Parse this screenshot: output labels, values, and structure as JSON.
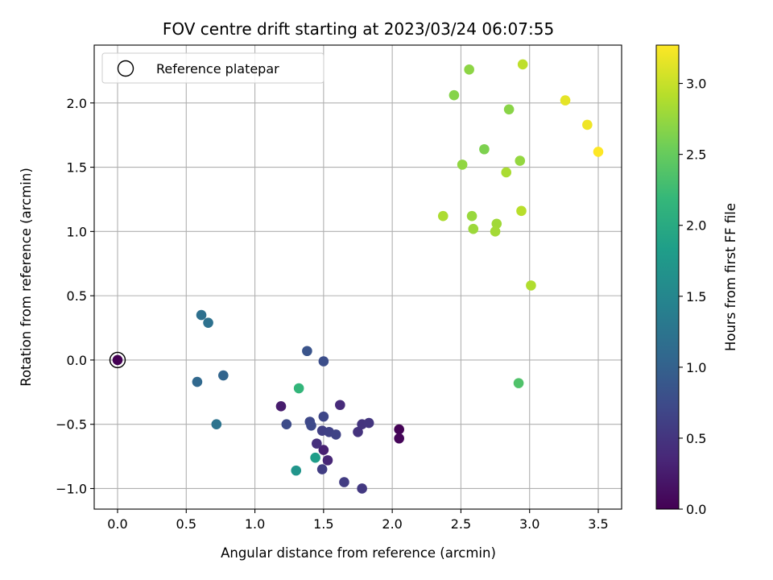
{
  "chart_data": {
    "type": "scatter",
    "title": "FOV centre drift starting at 2023/03/24 06:07:55",
    "xlabel": "Angular distance from reference (arcmin)",
    "ylabel": "Rotation from reference (arcmin)",
    "xlim": [
      -0.17,
      3.67
    ],
    "ylim": [
      -1.16,
      2.45
    ],
    "x_ticks": [
      0.0,
      0.5,
      1.0,
      1.5,
      2.0,
      2.5,
      3.0,
      3.5
    ],
    "x_tick_labels": [
      "0.0",
      "0.5",
      "1.0",
      "1.5",
      "2.0",
      "2.5",
      "3.0",
      "3.5"
    ],
    "y_ticks": [
      -1.0,
      -0.5,
      0.0,
      0.5,
      1.0,
      1.5,
      2.0
    ],
    "y_tick_labels": [
      "−1.0",
      "−0.5",
      "0.0",
      "0.5",
      "1.0",
      "1.5",
      "2.0"
    ],
    "grid": true,
    "legend": {
      "placement": "top-left",
      "entries": [
        "Reference platepar"
      ]
    },
    "colorbar": {
      "label": "Hours from first FF file",
      "colormap": "viridis",
      "range": [
        0.0,
        3.27
      ],
      "ticks": [
        0.0,
        0.5,
        1.0,
        1.5,
        2.0,
        2.5,
        3.0
      ],
      "tick_labels": [
        "0.0",
        "0.5",
        "1.0",
        "1.5",
        "2.0",
        "2.5",
        "3.0"
      ]
    },
    "reference_point": {
      "name": "Reference platepar",
      "x": 0.0,
      "y": 0.0
    },
    "points": [
      {
        "x": 0.0,
        "y": 0.0,
        "c": 0.0
      },
      {
        "x": 2.05,
        "y": -0.54,
        "c": 0.02
      },
      {
        "x": 2.05,
        "y": -0.61,
        "c": 0.05
      },
      {
        "x": 1.19,
        "y": -0.36,
        "c": 0.25
      },
      {
        "x": 1.5,
        "y": -0.7,
        "c": 0.3
      },
      {
        "x": 1.53,
        "y": -0.78,
        "c": 0.35
      },
      {
        "x": 1.62,
        "y": -0.35,
        "c": 0.4
      },
      {
        "x": 1.45,
        "y": -0.65,
        "c": 0.45
      },
      {
        "x": 1.75,
        "y": -0.56,
        "c": 0.48
      },
      {
        "x": 1.78,
        "y": -0.5,
        "c": 0.5
      },
      {
        "x": 1.83,
        "y": -0.49,
        "c": 0.52
      },
      {
        "x": 1.78,
        "y": -1.0,
        "c": 0.55
      },
      {
        "x": 1.65,
        "y": -0.95,
        "c": 0.58
      },
      {
        "x": 1.49,
        "y": -0.85,
        "c": 0.6
      },
      {
        "x": 1.49,
        "y": -0.55,
        "c": 0.62
      },
      {
        "x": 1.54,
        "y": -0.56,
        "c": 0.64
      },
      {
        "x": 1.59,
        "y": -0.58,
        "c": 0.66
      },
      {
        "x": 1.5,
        "y": -0.44,
        "c": 0.7
      },
      {
        "x": 1.4,
        "y": -0.48,
        "c": 0.72
      },
      {
        "x": 1.41,
        "y": -0.51,
        "c": 0.74
      },
      {
        "x": 1.23,
        "y": -0.5,
        "c": 0.76
      },
      {
        "x": 1.5,
        "y": -0.01,
        "c": 0.78
      },
      {
        "x": 1.38,
        "y": 0.07,
        "c": 0.85
      },
      {
        "x": 0.77,
        "y": -0.12,
        "c": 1.05
      },
      {
        "x": 0.58,
        "y": -0.17,
        "c": 1.1
      },
      {
        "x": 0.61,
        "y": 0.35,
        "c": 1.2
      },
      {
        "x": 0.66,
        "y": 0.29,
        "c": 1.22
      },
      {
        "x": 0.72,
        "y": -0.5,
        "c": 1.25
      },
      {
        "x": 1.3,
        "y": -0.86,
        "c": 1.7
      },
      {
        "x": 1.44,
        "y": -0.76,
        "c": 1.8
      },
      {
        "x": 1.32,
        "y": -0.22,
        "c": 2.15
      },
      {
        "x": 2.92,
        "y": -0.18,
        "c": 2.35
      },
      {
        "x": 2.67,
        "y": 1.64,
        "c": 2.62
      },
      {
        "x": 2.45,
        "y": 2.06,
        "c": 2.66
      },
      {
        "x": 2.85,
        "y": 1.95,
        "c": 2.68
      },
      {
        "x": 2.56,
        "y": 2.26,
        "c": 2.7
      },
      {
        "x": 2.51,
        "y": 1.52,
        "c": 2.72
      },
      {
        "x": 2.93,
        "y": 1.55,
        "c": 2.74
      },
      {
        "x": 2.58,
        "y": 1.12,
        "c": 2.76
      },
      {
        "x": 2.59,
        "y": 1.02,
        "c": 2.78
      },
      {
        "x": 2.76,
        "y": 1.06,
        "c": 2.8
      },
      {
        "x": 2.75,
        "y": 1.0,
        "c": 2.82
      },
      {
        "x": 2.83,
        "y": 1.46,
        "c": 2.85
      },
      {
        "x": 2.37,
        "y": 1.12,
        "c": 2.86
      },
      {
        "x": 3.01,
        "y": 0.58,
        "c": 2.88
      },
      {
        "x": 2.94,
        "y": 1.16,
        "c": 2.92
      },
      {
        "x": 2.95,
        "y": 2.3,
        "c": 2.95
      },
      {
        "x": 3.26,
        "y": 2.02,
        "c": 3.15
      },
      {
        "x": 3.42,
        "y": 1.83,
        "c": 3.2
      },
      {
        "x": 3.5,
        "y": 1.62,
        "c": 3.27
      }
    ]
  }
}
